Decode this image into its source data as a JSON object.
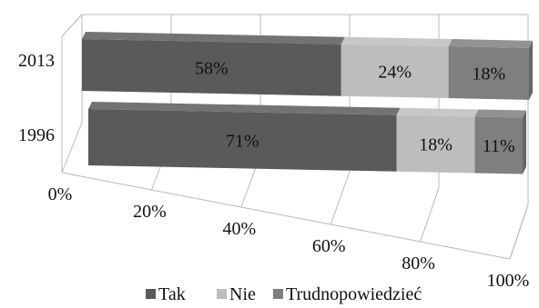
{
  "chart_data": {
    "type": "bar",
    "orientation": "horizontal",
    "stacked": true,
    "percent_stacked": true,
    "categories": [
      "2013",
      "1996"
    ],
    "series": [
      {
        "name": "Tak",
        "values": [
          58,
          71
        ],
        "labels": [
          "58%",
          "71%"
        ],
        "color": "#5a5a5a"
      },
      {
        "name": "Nie",
        "values": [
          24,
          18
        ],
        "labels": [
          "24%",
          "18%"
        ],
        "color": "#bdbdbd"
      },
      {
        "name": "Trudnopowiedzieć",
        "values": [
          18,
          11
        ],
        "labels": [
          "18%",
          "11%"
        ],
        "color": "#7f7f7f"
      }
    ],
    "xlim": [
      0,
      100
    ],
    "x_ticks": [
      "0%",
      "20%",
      "40%",
      "60%",
      "80%",
      "100%"
    ],
    "grid": true,
    "legend_position": "bottom",
    "style": "3d",
    "title": "",
    "xlabel": "",
    "ylabel": ""
  }
}
